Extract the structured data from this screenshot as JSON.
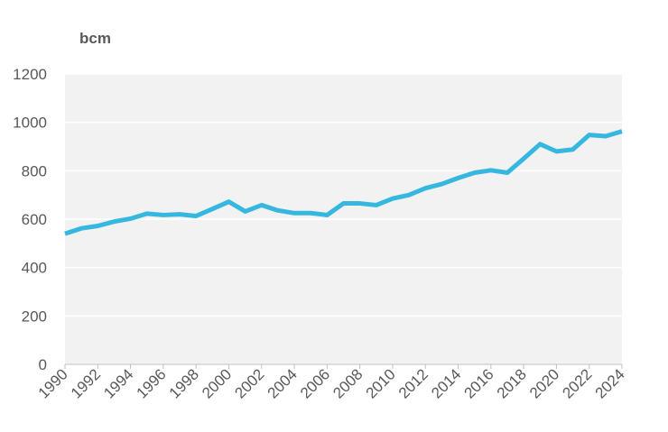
{
  "chart_data": {
    "type": "line",
    "unit_label": "bcm",
    "x": [
      1990,
      1991,
      1992,
      1993,
      1994,
      1995,
      1996,
      1997,
      1998,
      1999,
      2000,
      2001,
      2002,
      2003,
      2004,
      2005,
      2006,
      2007,
      2008,
      2009,
      2010,
      2011,
      2012,
      2013,
      2014,
      2015,
      2016,
      2017,
      2018,
      2019,
      2020,
      2021,
      2022,
      2023,
      2024
    ],
    "values": [
      540,
      562,
      572,
      590,
      602,
      623,
      617,
      620,
      613,
      642,
      672,
      632,
      658,
      636,
      625,
      625,
      617,
      665,
      665,
      658,
      685,
      700,
      728,
      745,
      770,
      792,
      802,
      792,
      850,
      910,
      880,
      888,
      948,
      943,
      963
    ],
    "color": "#36b7e0",
    "xlim": [
      1990,
      2024
    ],
    "xticks": [
      1990,
      1992,
      1994,
      1996,
      1998,
      2000,
      2002,
      2004,
      2006,
      2008,
      2010,
      2012,
      2014,
      2016,
      2018,
      2020,
      2022,
      2024
    ],
    "ylim": [
      0,
      1200
    ],
    "yticks": [
      0,
      200,
      400,
      600,
      800,
      1000,
      1200
    ],
    "grid": true
  }
}
